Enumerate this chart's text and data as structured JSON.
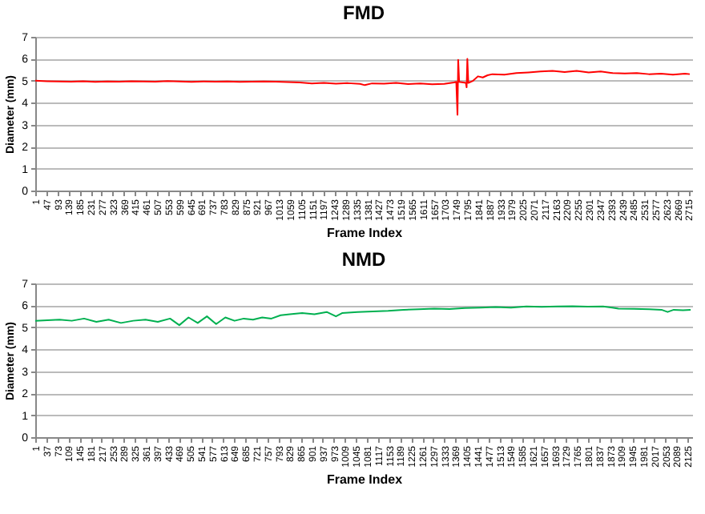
{
  "chart_data": [
    {
      "type": "line",
      "title": "FMD",
      "xlabel": "Frame Index",
      "ylabel": "Diameter (mm)",
      "xlim": [
        1,
        2730
      ],
      "ylim": [
        0,
        7
      ],
      "yticks": [
        0,
        1,
        2,
        3,
        4,
        5,
        6,
        7
      ],
      "grid": "y",
      "xticks": [
        1,
        47,
        93,
        139,
        185,
        231,
        277,
        323,
        369,
        415,
        461,
        507,
        553,
        599,
        645,
        691,
        737,
        783,
        829,
        875,
        921,
        967,
        1013,
        1059,
        1105,
        1151,
        1197,
        1243,
        1289,
        1335,
        1381,
        1427,
        1473,
        1519,
        1565,
        1611,
        1657,
        1703,
        1749,
        1795,
        1841,
        1887,
        1933,
        1979,
        2025,
        2071,
        2117,
        2163,
        2209,
        2255,
        2301,
        2347,
        2393,
        2439,
        2485,
        2531,
        2577,
        2623,
        2669,
        2715
      ],
      "series": [
        {
          "color": "#ff0000",
          "x": [
            1,
            50,
            100,
            150,
            200,
            250,
            300,
            350,
            400,
            450,
            500,
            550,
            600,
            650,
            700,
            750,
            800,
            850,
            900,
            950,
            1000,
            1050,
            1100,
            1150,
            1200,
            1250,
            1300,
            1350,
            1370,
            1400,
            1450,
            1500,
            1550,
            1600,
            1650,
            1700,
            1740,
            1750,
            1755,
            1758,
            1762,
            1790,
            1793,
            1796,
            1800,
            1820,
            1840,
            1860,
            1880,
            1900,
            1950,
            2000,
            2050,
            2100,
            2150,
            2200,
            2250,
            2300,
            2350,
            2400,
            2450,
            2500,
            2550,
            2600,
            2650,
            2700,
            2720
          ],
          "values": [
            5.0,
            4.98,
            4.97,
            4.96,
            4.98,
            4.95,
            4.97,
            4.96,
            4.98,
            4.97,
            4.96,
            4.99,
            4.97,
            4.95,
            4.97,
            4.96,
            4.97,
            4.95,
            4.96,
            4.97,
            4.96,
            4.94,
            4.92,
            4.88,
            4.9,
            4.87,
            4.89,
            4.86,
            4.8,
            4.88,
            4.87,
            4.9,
            4.85,
            4.88,
            4.84,
            4.86,
            4.92,
            4.95,
            3.45,
            5.95,
            4.95,
            4.9,
            4.7,
            6.0,
            4.9,
            5.0,
            5.2,
            5.15,
            5.25,
            5.3,
            5.28,
            5.35,
            5.38,
            5.42,
            5.45,
            5.4,
            5.45,
            5.38,
            5.42,
            5.35,
            5.33,
            5.35,
            5.3,
            5.32,
            5.28,
            5.32,
            5.3
          ]
        }
      ]
    },
    {
      "type": "line",
      "title": "NMD",
      "xlabel": "Frame Index",
      "ylabel": "Diameter (mm)",
      "xlim": [
        1,
        2140
      ],
      "ylim": [
        0,
        7
      ],
      "yticks": [
        0,
        1,
        2,
        3,
        4,
        5,
        6,
        7
      ],
      "grid": "y",
      "xticks": [
        1,
        37,
        73,
        109,
        145,
        181,
        217,
        253,
        289,
        325,
        361,
        397,
        433,
        469,
        505,
        541,
        577,
        613,
        649,
        685,
        721,
        757,
        793,
        829,
        865,
        901,
        937,
        973,
        1009,
        1045,
        1081,
        1117,
        1153,
        1189,
        1225,
        1261,
        1297,
        1333,
        1369,
        1405,
        1441,
        1477,
        1513,
        1549,
        1585,
        1621,
        1657,
        1693,
        1729,
        1765,
        1801,
        1837,
        1873,
        1909,
        1945,
        1981,
        2017,
        2053,
        2089,
        2125
      ],
      "series": [
        {
          "color": "#00b050",
          "x": [
            1,
            40,
            80,
            120,
            160,
            200,
            240,
            280,
            320,
            360,
            400,
            440,
            470,
            500,
            530,
            560,
            590,
            620,
            650,
            680,
            710,
            740,
            770,
            800,
            830,
            870,
            910,
            950,
            980,
            1000,
            1050,
            1100,
            1150,
            1200,
            1250,
            1300,
            1350,
            1400,
            1450,
            1500,
            1550,
            1600,
            1650,
            1700,
            1750,
            1800,
            1850,
            1880,
            1900,
            1950,
            2000,
            2040,
            2060,
            2080,
            2110,
            2135
          ],
          "values": [
            5.3,
            5.32,
            5.35,
            5.3,
            5.4,
            5.25,
            5.35,
            5.2,
            5.3,
            5.35,
            5.25,
            5.4,
            5.1,
            5.45,
            5.2,
            5.5,
            5.15,
            5.45,
            5.3,
            5.4,
            5.35,
            5.45,
            5.4,
            5.55,
            5.6,
            5.65,
            5.6,
            5.7,
            5.5,
            5.65,
            5.7,
            5.72,
            5.75,
            5.8,
            5.82,
            5.85,
            5.83,
            5.88,
            5.9,
            5.92,
            5.9,
            5.95,
            5.93,
            5.95,
            5.96,
            5.94,
            5.95,
            5.9,
            5.85,
            5.84,
            5.82,
            5.8,
            5.7,
            5.8,
            5.78,
            5.8
          ]
        }
      ]
    }
  ]
}
